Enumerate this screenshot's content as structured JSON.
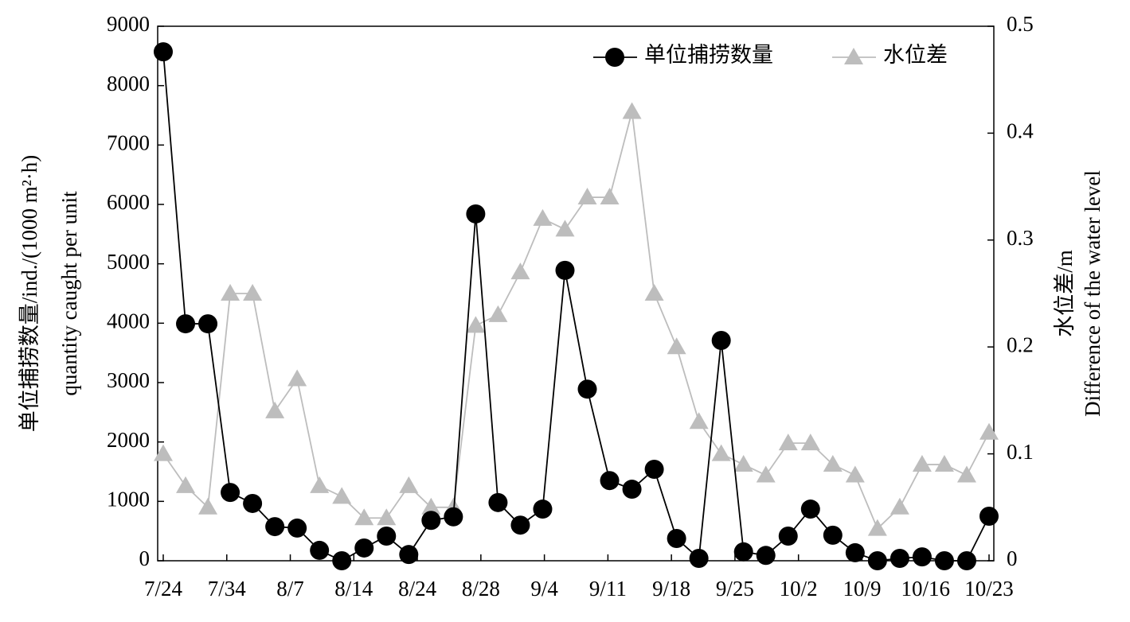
{
  "chart_data": {
    "type": "line",
    "x_tick_labels": [
      "7/24",
      "7/34",
      "8/7",
      "8/14",
      "8/24",
      "8/28",
      "9/4",
      "9/11",
      "9/18",
      "9/25",
      "10/2",
      "10/9",
      "10/16",
      "10/23"
    ],
    "series": [
      {
        "name": "单位捕捞数量",
        "color": "#000000",
        "marker": "circle",
        "values": [
          8570,
          3990,
          3990,
          1150,
          965,
          575,
          550,
          175,
          0,
          215,
          415,
          105,
          680,
          740,
          5840,
          980,
          600,
          870,
          4890,
          2890,
          1350,
          1205,
          1540,
          375,
          40,
          3710,
          150,
          90,
          415,
          870,
          430,
          135,
          0,
          40,
          65,
          0,
          0,
          750
        ]
      },
      {
        "name": "水位差",
        "color": "#bdbdbd",
        "marker": "triangle",
        "axis": "y2",
        "values": [
          0.1,
          0.07,
          0.05,
          0.25,
          0.25,
          0.14,
          0.17,
          0.07,
          0.06,
          0.04,
          0.04,
          0.07,
          0.05,
          0.05,
          0.22,
          0.23,
          0.27,
          0.32,
          0.31,
          0.34,
          0.34,
          0.42,
          0.25,
          0.2,
          0.13,
          0.1,
          0.09,
          0.08,
          0.11,
          0.11,
          0.09,
          0.08,
          0.03,
          0.05,
          0.09,
          0.09,
          0.08,
          0.12
        ]
      }
    ],
    "ylabel": [
      "单位捕捞数量/ind./(1000 m²·h)",
      "quantity caught per unit"
    ],
    "y2label": [
      "水位差/m",
      "Difference of the water level"
    ],
    "ylim": [
      0,
      9000
    ],
    "yticks": [
      0,
      1000,
      2000,
      3000,
      4000,
      5000,
      6000,
      7000,
      8000,
      9000
    ],
    "y2lim": [
      0,
      0.5
    ],
    "y2ticks": [
      0,
      0.1,
      0.2,
      0.3,
      0.4,
      0.5
    ],
    "legend": "upper right"
  }
}
